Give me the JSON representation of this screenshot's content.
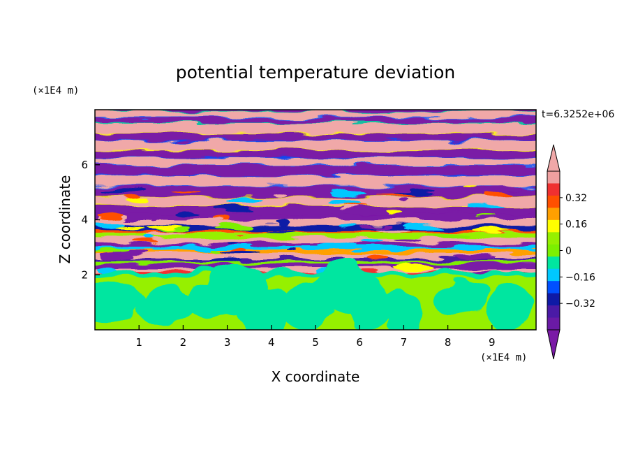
{
  "chart_data": {
    "type": "heatmap",
    "title": "potential temperature deviation",
    "xlabel": "X coordinate",
    "ylabel": "Z coordinate",
    "x_unit": "(×1E4 m)",
    "y_unit": "(×1E4 m)",
    "time_label": "t=6.3252e+06",
    "xlim": [
      0,
      10
    ],
    "ylim": [
      0,
      8
    ],
    "x_ticks": [
      "1",
      "2",
      "3",
      "4",
      "5",
      "6",
      "7",
      "8",
      "9"
    ],
    "x_tick_values": [
      1,
      2,
      3,
      4,
      5,
      6,
      7,
      8,
      9
    ],
    "y_ticks": [
      "2",
      "4",
      "6"
    ],
    "y_tick_values": [
      2,
      4,
      6
    ],
    "grid": false,
    "colorbar": {
      "position": "right",
      "extend": "both",
      "levels": [
        -0.48,
        -0.4,
        -0.32,
        -0.24,
        -0.16,
        -0.08,
        0,
        0.08,
        0.16,
        0.24,
        0.32,
        0.4,
        0.48
      ],
      "colors": [
        "#6a1aa6",
        "#4a1aa6",
        "#0f1aa6",
        "#0050ff",
        "#00c8ff",
        "#00e6a0",
        "#7cf000",
        "#96f000",
        "#ffff00",
        "#ffa000",
        "#ff5000",
        "#f03030",
        "#f0a0a0"
      ],
      "under_color": "#7a1aa6",
      "over_color": "#f0a8a8",
      "tick_labels": [
        "0.32",
        "0.16",
        "0",
        "−0.16",
        "−0.32"
      ],
      "tick_values": [
        0.32,
        0.16,
        0,
        -0.16,
        -0.32
      ]
    },
    "regions": {
      "upper_layered": {
        "z_range": [
          4.2,
          8.0
        ],
        "pattern": "alternating bands of strong positive (pink) and strong negative (purple) deviation"
      },
      "transition": {
        "z_range": [
          2.0,
          4.2
        ],
        "pattern": "mixed thin bands spanning all contour levels"
      },
      "lower_mixed": {
        "z_range": [
          0,
          2.0
        ],
        "pattern": "near-zero deviation with green and cyan-green cells"
      }
    }
  }
}
